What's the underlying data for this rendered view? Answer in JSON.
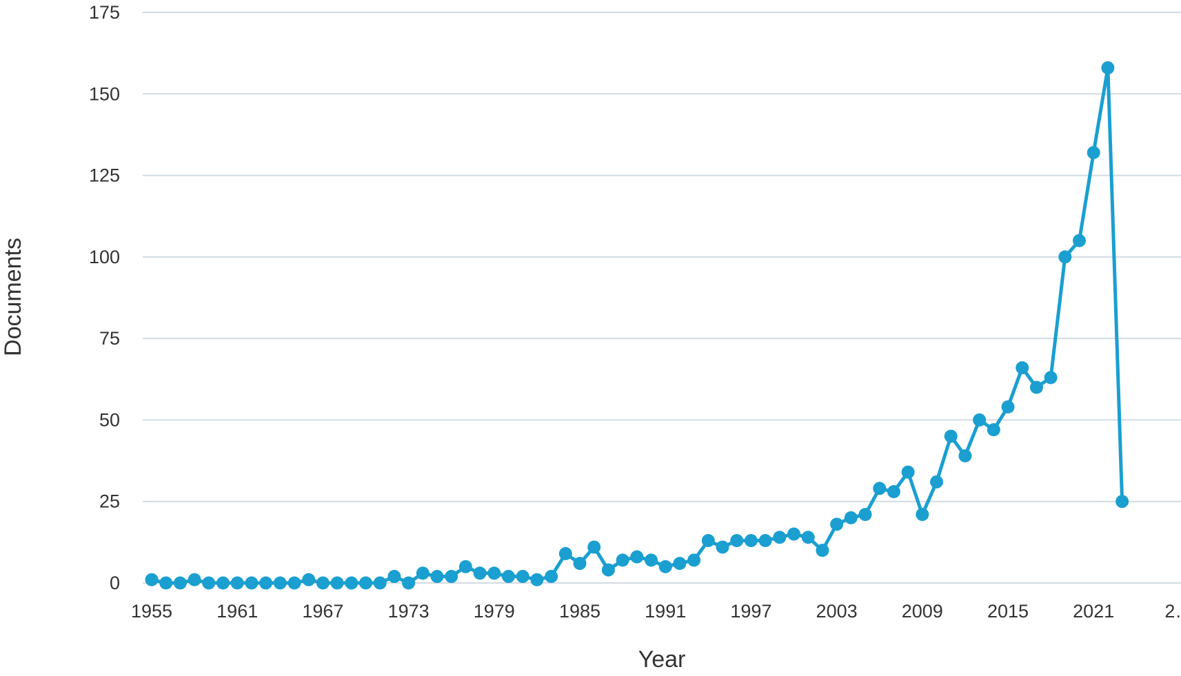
{
  "chart_data": {
    "type": "line",
    "xlabel": "Year",
    "ylabel": "Documents",
    "ylim": [
      0,
      175
    ],
    "y_ticks": [
      0,
      25,
      50,
      75,
      100,
      125,
      150,
      175
    ],
    "x_tick_labels": [
      "1955",
      "1961",
      "1967",
      "1973",
      "1979",
      "1985",
      "1991",
      "1997",
      "2003",
      "2009",
      "2015",
      "2021",
      "2…"
    ],
    "grid": "horizontal",
    "legend": "none",
    "color": "#1a9fd0",
    "series": [
      {
        "x": [
          1955,
          1956,
          1957,
          1958,
          1959,
          1960,
          1961,
          1962,
          1963,
          1964,
          1965,
          1966,
          1967,
          1968,
          1969,
          1970,
          1971,
          1972,
          1973,
          1974,
          1975,
          1976,
          1977,
          1978,
          1979,
          1980,
          1981,
          1982,
          1983,
          1984,
          1985,
          1986,
          1987,
          1988,
          1989,
          1990,
          1991,
          1992,
          1993,
          1994,
          1995,
          1996,
          1997,
          1998,
          1999,
          2000,
          2001,
          2002,
          2003,
          2004,
          2005,
          2006,
          2007,
          2008,
          2009,
          2010,
          2011,
          2012,
          2013,
          2014,
          2015,
          2016,
          2017,
          2018,
          2019,
          2020,
          2021,
          2022,
          2023
        ],
        "values": [
          1,
          0,
          0,
          1,
          0,
          0,
          0,
          0,
          0,
          0,
          0,
          1,
          0,
          0,
          0,
          0,
          0,
          2,
          0,
          3,
          2,
          2,
          5,
          3,
          3,
          2,
          2,
          1,
          2,
          9,
          6,
          11,
          4,
          7,
          8,
          7,
          5,
          6,
          7,
          13,
          11,
          13,
          13,
          13,
          14,
          15,
          14,
          10,
          18,
          20,
          21,
          29,
          28,
          34,
          21,
          31,
          45,
          39,
          50,
          47,
          54,
          66,
          60,
          63,
          100,
          105,
          132,
          158,
          25
        ]
      }
    ]
  }
}
